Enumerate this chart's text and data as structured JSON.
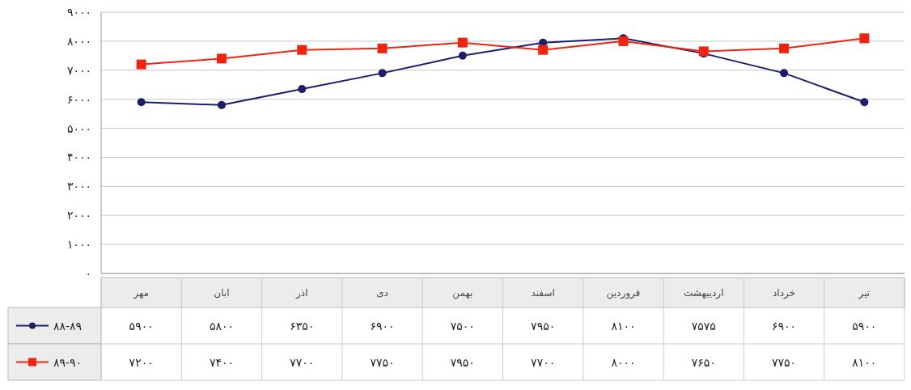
{
  "chart_data": {
    "type": "line",
    "categories": [
      "مهر",
      "ابان",
      "اذر",
      "دی",
      "بهمن",
      "اسفند",
      "فروردین",
      "اردیبهشت",
      "خرداد",
      "تیر"
    ],
    "ylim": [
      0,
      9000
    ],
    "yticks": [
      {
        "value": 0,
        "label": "۰"
      },
      {
        "value": 1000,
        "label": "۱۰۰۰"
      },
      {
        "value": 2000,
        "label": "۲۰۰۰"
      },
      {
        "value": 3000,
        "label": "۳۰۰۰"
      },
      {
        "value": 4000,
        "label": "۴۰۰۰"
      },
      {
        "value": 5000,
        "label": "۵۰۰۰"
      },
      {
        "value": 6000,
        "label": "۶۰۰۰"
      },
      {
        "value": 7000,
        "label": "۷۰۰۰"
      },
      {
        "value": 8000,
        "label": "۸۰۰۰"
      },
      {
        "value": 9000,
        "label": "۹۰۰۰"
      }
    ],
    "grid": "y",
    "legend": "bottom",
    "series": [
      {
        "name": "۸۸-۸۹",
        "color": "#1b1f6b",
        "marker": "circle",
        "values": [
          5900,
          5800,
          6350,
          6900,
          7500,
          7950,
          8100,
          7575,
          6900,
          5900
        ],
        "value_labels": [
          "۵۹۰۰",
          "۵۸۰۰",
          "۶۳۵۰",
          "۶۹۰۰",
          "۷۵۰۰",
          "۷۹۵۰",
          "۸۱۰۰",
          "۷۵۷۵",
          "۶۹۰۰",
          "۵۹۰۰"
        ]
      },
      {
        "name": "۸۹-۹۰",
        "color": "#ee2411",
        "marker": "square",
        "values": [
          7200,
          7400,
          7700,
          7750,
          7950,
          7700,
          8000,
          7650,
          7750,
          8100
        ],
        "value_labels": [
          "۷۲۰۰",
          "۷۴۰۰",
          "۷۷۰۰",
          "۷۷۵۰",
          "۷۹۵۰",
          "۷۷۰۰",
          "۸۰۰۰",
          "۷۶۵۰",
          "۷۷۵۰",
          "۸۱۰۰"
        ]
      }
    ]
  }
}
